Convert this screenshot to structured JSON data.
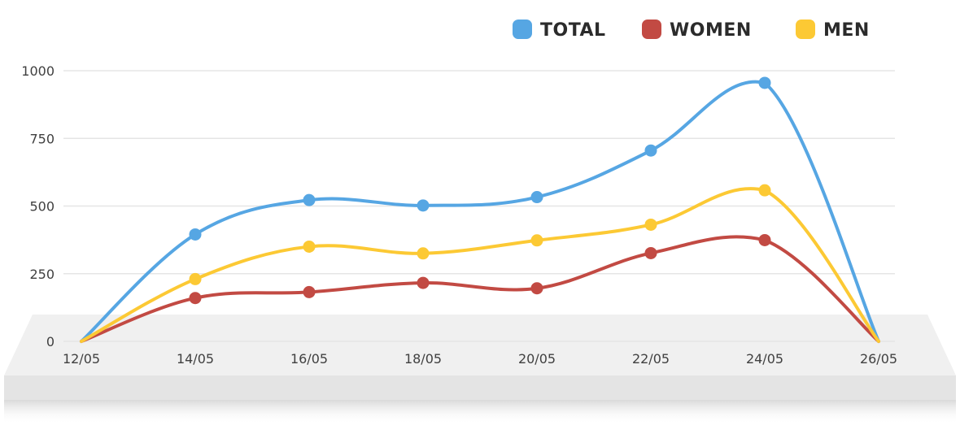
{
  "chart_data": {
    "type": "line",
    "title": "",
    "xlabel": "",
    "ylabel": "",
    "categories": [
      "12/05",
      "14/05",
      "16/05",
      "18/05",
      "20/05",
      "22/05",
      "24/05",
      "26/05"
    ],
    "ylim": [
      0,
      1000
    ],
    "yticks": [
      0,
      250,
      500,
      750,
      1000
    ],
    "grid": true,
    "legend_position": "top-right",
    "series": [
      {
        "name": "TOTAL",
        "color": "#56a6e3",
        "values": [
          0,
          395,
          522,
          502,
          533,
          705,
          955,
          0
        ]
      },
      {
        "name": "WOMEN",
        "color": "#c24a43",
        "values": [
          0,
          160,
          182,
          216,
          196,
          326,
          374,
          0
        ]
      },
      {
        "name": "MEN",
        "color": "#fcc934",
        "values": [
          0,
          230,
          350,
          325,
          373,
          431,
          558,
          0
        ]
      }
    ],
    "colors": {
      "grid": "#e5e5e5",
      "platform_top": "#f0f0f0",
      "platform_front": "#e4e4e4",
      "axis_text": "#404040"
    }
  }
}
